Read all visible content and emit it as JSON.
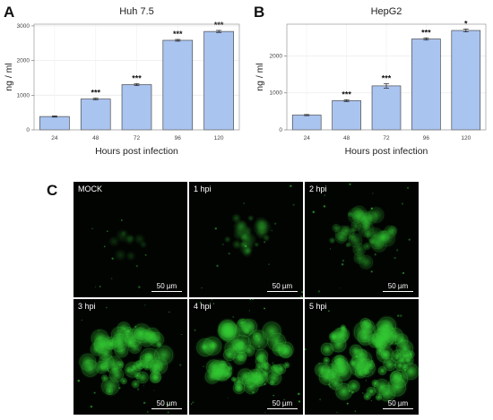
{
  "panels": {
    "a": "A",
    "b": "B",
    "c": "C"
  },
  "chart_data": [
    {
      "type": "bar",
      "title": "Huh 7.5",
      "xlabel": "Hours post infection",
      "ylabel": "ng / ml",
      "categories": [
        "24",
        "48",
        "72",
        "96",
        "120"
      ],
      "values": [
        385,
        890,
        1305,
        2585,
        2840
      ],
      "errors": [
        18,
        22,
        28,
        25,
        30
      ],
      "significance": [
        "",
        "***",
        "***",
        "***",
        "***"
      ],
      "yticks": [
        0,
        1000,
        2000,
        3000
      ],
      "ylim": [
        0,
        3050
      ],
      "bar_color": "#aac4f0",
      "grid": true
    },
    {
      "type": "bar",
      "title": "HepG2",
      "xlabel": "Hours post infection",
      "ylabel": "ng / ml",
      "categories": [
        "24",
        "48",
        "72",
        "96",
        "120"
      ],
      "values": [
        400,
        790,
        1190,
        2460,
        2690
      ],
      "errors": [
        15,
        25,
        60,
        30,
        40
      ],
      "significance": [
        "",
        "***",
        "***",
        "***",
        "*"
      ],
      "yticks": [
        0,
        1000,
        2000
      ],
      "ylim": [
        0,
        2860
      ],
      "bar_color": "#aac4f0",
      "grid": true
    }
  ],
  "micrographs": [
    {
      "label": "MOCK",
      "scale": "50 µm",
      "intensity": 0.05
    },
    {
      "label": "1 hpi",
      "scale": "50 µm",
      "intensity": 0.25
    },
    {
      "label": "2 hpi",
      "scale": "50 µm",
      "intensity": 0.5
    },
    {
      "label": "3 hpi",
      "scale": "50 µm",
      "intensity": 0.85
    },
    {
      "label": "4 hpi",
      "scale": "50 µm",
      "intensity": 0.9
    },
    {
      "label": "5 hpi",
      "scale": "50 µm",
      "intensity": 1.0
    }
  ],
  "colors": {
    "fluorescence": "#33cc33",
    "background": "#020402"
  }
}
